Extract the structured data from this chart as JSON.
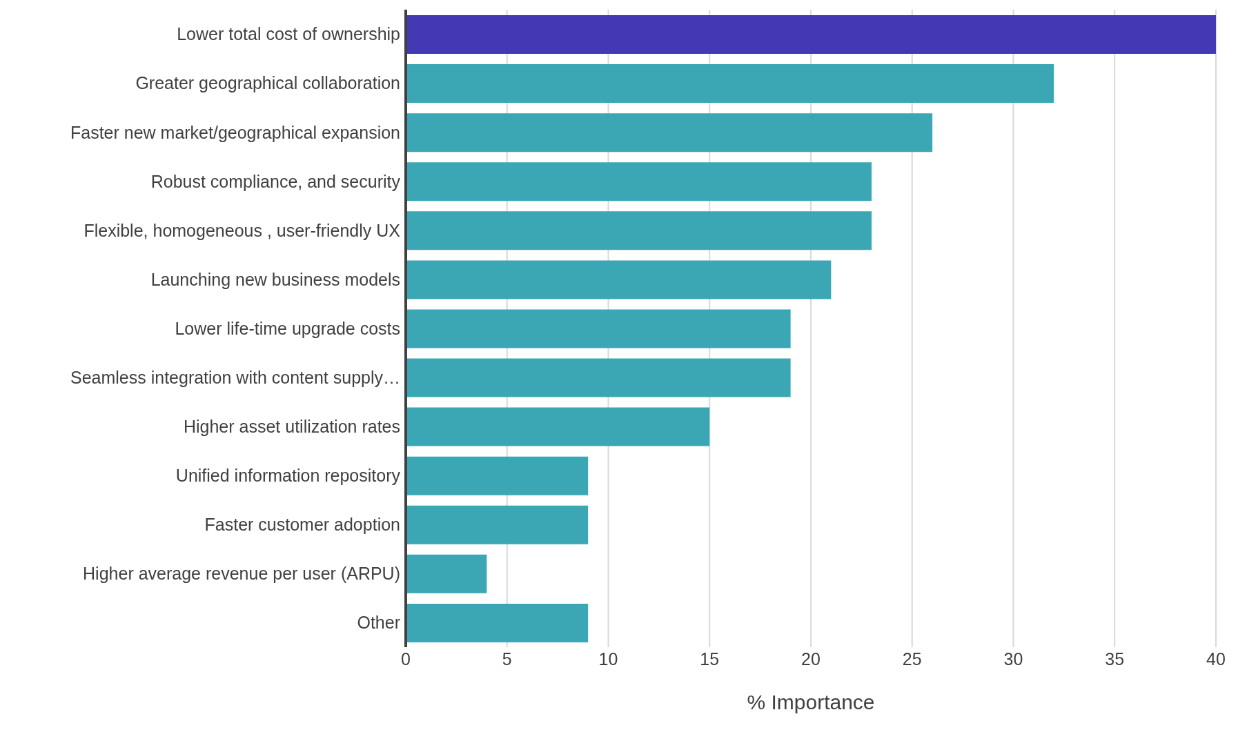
{
  "chart_data": {
    "type": "bar",
    "orientation": "horizontal",
    "xlabel": "% Importance",
    "categories": [
      "Lower total cost of ownership",
      "Greater geographical collaboration",
      "Faster new market/geographical expansion",
      "Robust compliance, and security",
      "Flexible, homogeneous , user-friendly UX",
      "Launching new business models",
      "Lower life-time upgrade costs",
      "Seamless integration with content supply…",
      "Higher asset utilization rates",
      "Unified information repository",
      "Faster customer adoption",
      "Higher average revenue per user (ARPU)",
      "Other"
    ],
    "values": [
      40,
      32,
      26,
      23,
      23,
      21,
      19,
      19,
      15,
      9,
      9,
      4,
      9
    ],
    "colors": [
      "#4339b5",
      "#3ba7b5",
      "#3ba7b5",
      "#3ba7b5",
      "#3ba7b5",
      "#3ba7b5",
      "#3ba7b5",
      "#3ba7b5",
      "#3ba7b5",
      "#3ba7b5",
      "#3ba7b5",
      "#3ba7b5",
      "#3ba7b5"
    ],
    "xlim": [
      0,
      40
    ],
    "xticks": [
      0,
      5,
      10,
      15,
      20,
      25,
      30,
      35,
      40
    ],
    "grid": "x"
  }
}
